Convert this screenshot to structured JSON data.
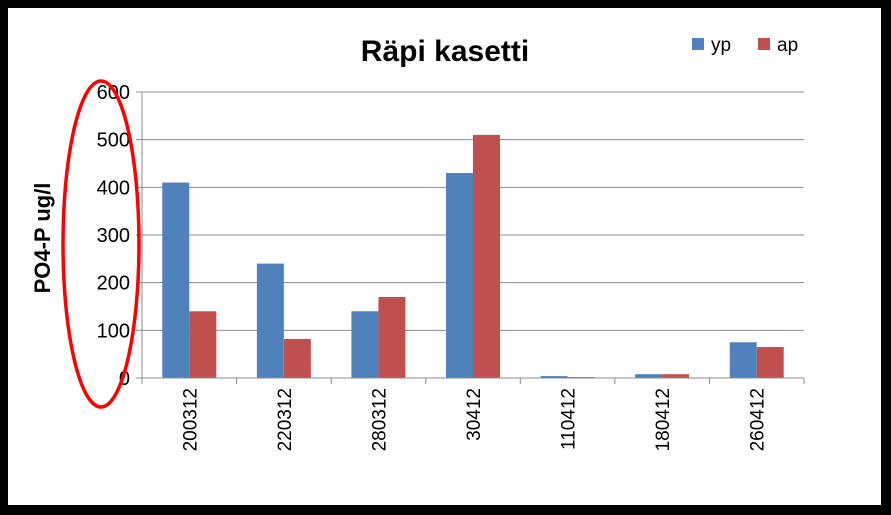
{
  "chart_data": {
    "type": "bar",
    "title": "Räpi kasetti",
    "xlabel": "",
    "ylabel": "PO4-P ug/l",
    "categories": [
      "200312",
      "220312",
      "280312",
      "30412",
      "110412",
      "180412",
      "260412"
    ],
    "series": [
      {
        "name": "yp",
        "color": "#4F81BD",
        "values": [
          410,
          240,
          140,
          430,
          4,
          8,
          75
        ]
      },
      {
        "name": "ap",
        "color": "#C0504D",
        "values": [
          140,
          82,
          170,
          510,
          2,
          8,
          65
        ]
      }
    ],
    "ylim": [
      0,
      600
    ],
    "yticks": [
      0,
      100,
      200,
      300,
      400,
      500,
      600
    ],
    "grid": true,
    "legend_position": "top-right",
    "annotation": {
      "shape": "ellipse",
      "color": "#FF0000",
      "target": "y-axis tick labels"
    }
  }
}
